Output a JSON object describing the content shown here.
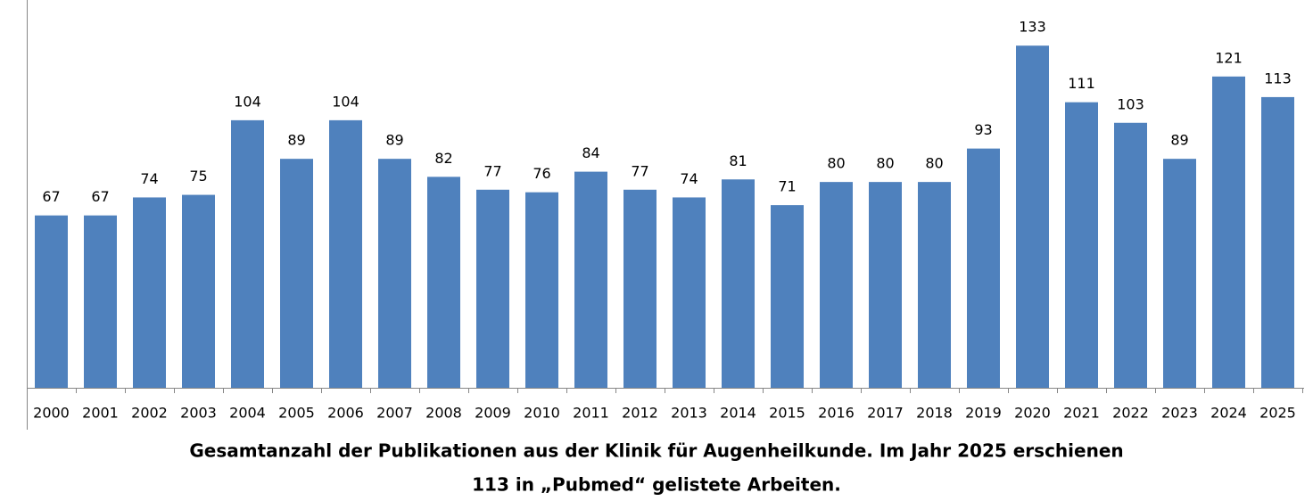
{
  "chart_data": {
    "type": "bar",
    "categories": [
      "2000",
      "2001",
      "2002",
      "2003",
      "2004",
      "2005",
      "2006",
      "2007",
      "2008",
      "2009",
      "2010",
      "2011",
      "2012",
      "2013",
      "2014",
      "2015",
      "2016",
      "2017",
      "2018",
      "2019",
      "2020",
      "2021",
      "2022",
      "2023",
      "2024",
      "2025"
    ],
    "values": [
      67,
      67,
      74,
      75,
      104,
      89,
      104,
      89,
      82,
      77,
      76,
      84,
      77,
      74,
      81,
      71,
      80,
      80,
      80,
      93,
      133,
      111,
      103,
      89,
      121,
      113
    ],
    "color": "#4f81bd",
    "ylim": [
      0,
      140
    ],
    "caption": [
      "Gesamtanzahl der Publikationen aus der Klinik für Augenheilkunde. Im Jahr 2025 erschienen",
      "113 in „Pubmed“ gelistete Arbeiten."
    ]
  }
}
